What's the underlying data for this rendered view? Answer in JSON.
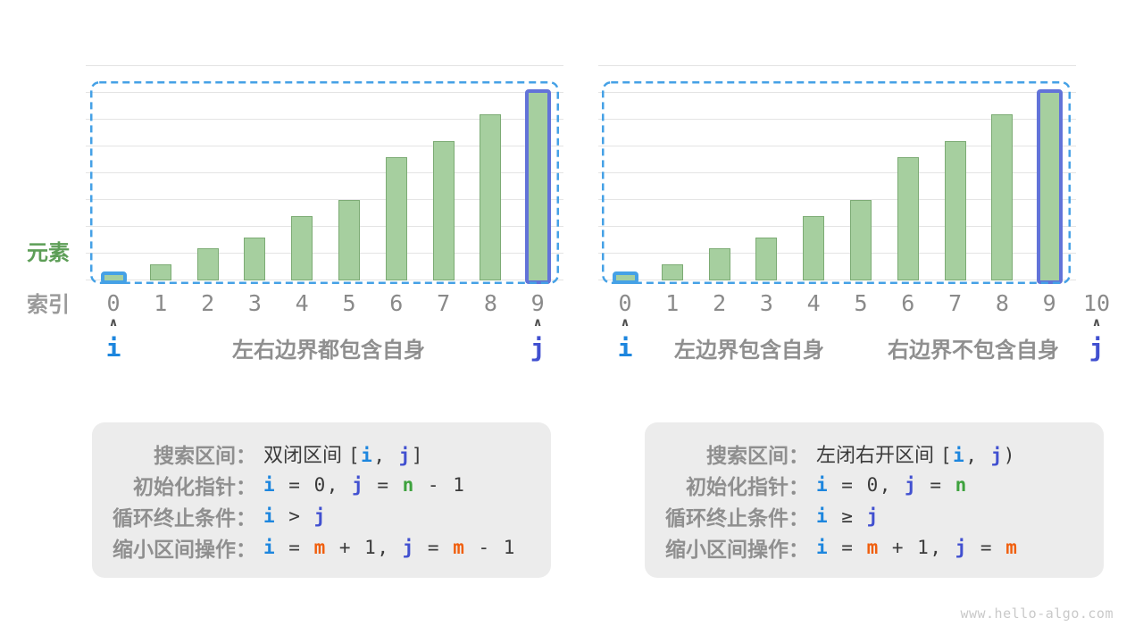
{
  "side_labels": {
    "elements": "元素",
    "index": "索引"
  },
  "watermark": "www.hello-algo.com",
  "colors": {
    "i": "#1d86de",
    "j": "#4150d0",
    "n": "#3ea23e",
    "m": "#f05f0e",
    "dark": "#3b3b3b",
    "bar_fill": "#a6cf9f",
    "bar_border": "#7cab74",
    "highlight_i": "#45a1e6",
    "highlight_j": "#6273d8",
    "selection_dash": "#45a1e6",
    "grid": "#e4e4e4",
    "elements_green": "#5d9e57",
    "axis_gray": "#9a9a9a",
    "index_digits": "#8a8a8a",
    "annotation_gray": "#8f8f8f",
    "caret": "#4f4f4f",
    "box_bg": "#ececec",
    "box_label": "#8f8f8f",
    "watermark": "#c9c9c9"
  },
  "chart_data": [
    {
      "type": "bar",
      "title": "双闭区间 [i, j]",
      "categories": [
        "0",
        "1",
        "2",
        "3",
        "4",
        "5",
        "6",
        "7",
        "8",
        "9"
      ],
      "values": [
        1,
        3,
        6,
        8,
        12,
        15,
        23,
        26,
        31,
        35
      ],
      "ylim": [
        0,
        40
      ],
      "gridline_step": 5,
      "grid": true,
      "legend_position": "none",
      "xlabel": "索引",
      "ylabel": "元素",
      "highlighted_bars": [
        {
          "index": 0,
          "color_key": "highlight_i"
        },
        {
          "index": 9,
          "color_key": "highlight_j"
        }
      ],
      "selection_range": {
        "from_category": "0",
        "to_category": "9"
      },
      "pointers": [
        {
          "label": "i",
          "at_category": "0"
        },
        {
          "label": "j",
          "at_category": "9"
        }
      ],
      "annotations": [
        "左右边界都包含自身"
      ]
    },
    {
      "type": "bar",
      "title": "左闭右开区间 [i, j)",
      "categories": [
        "0",
        "1",
        "2",
        "3",
        "4",
        "5",
        "6",
        "7",
        "8",
        "9",
        "10"
      ],
      "values": [
        1,
        3,
        6,
        8,
        12,
        15,
        23,
        26,
        31,
        35
      ],
      "ylim": [
        0,
        40
      ],
      "gridline_step": 5,
      "grid": true,
      "legend_position": "none",
      "xlabel": "索引",
      "ylabel": "元素",
      "highlighted_bars": [
        {
          "index": 0,
          "color_key": "highlight_i"
        },
        {
          "index": 9,
          "color_key": "highlight_j"
        }
      ],
      "selection_range": {
        "from_category": "0",
        "to_category": "9"
      },
      "pointers": [
        {
          "label": "i",
          "at_category": "0"
        },
        {
          "label": "j",
          "at_category": "10"
        }
      ],
      "annotations": [
        "左边界包含自身",
        "右边界不包含自身"
      ]
    }
  ],
  "info_boxes": [
    {
      "lines": [
        {
          "label": "搜索区间：",
          "code": [
            {
              "t": "双闭区间 ",
              "c": "dark",
              "k": "cjk"
            },
            {
              "t": "[",
              "c": "dark"
            },
            {
              "t": "i",
              "c": "i"
            },
            {
              "t": ", ",
              "c": "dark"
            },
            {
              "t": "j",
              "c": "j"
            },
            {
              "t": "]",
              "c": "dark"
            }
          ]
        },
        {
          "label": "初始化指针：",
          "code": [
            {
              "t": "i",
              "c": "i"
            },
            {
              "t": " = 0, ",
              "c": "dark"
            },
            {
              "t": "j",
              "c": "j"
            },
            {
              "t": " = ",
              "c": "dark"
            },
            {
              "t": "n",
              "c": "n"
            },
            {
              "t": " - 1",
              "c": "dark"
            }
          ]
        },
        {
          "label": "循环终止条件：",
          "code": [
            {
              "t": "i",
              "c": "i"
            },
            {
              "t": " > ",
              "c": "dark"
            },
            {
              "t": "j",
              "c": "j"
            }
          ]
        },
        {
          "label": "缩小区间操作：",
          "code": [
            {
              "t": "i",
              "c": "i"
            },
            {
              "t": " = ",
              "c": "dark"
            },
            {
              "t": "m",
              "c": "m"
            },
            {
              "t": " + 1, ",
              "c": "dark"
            },
            {
              "t": "j",
              "c": "j"
            },
            {
              "t": " = ",
              "c": "dark"
            },
            {
              "t": "m",
              "c": "m"
            },
            {
              "t": " - 1",
              "c": "dark"
            }
          ]
        }
      ]
    },
    {
      "lines": [
        {
          "label": "搜索区间：",
          "code": [
            {
              "t": "左闭右开区间 ",
              "c": "dark",
              "k": "cjk"
            },
            {
              "t": "[",
              "c": "dark"
            },
            {
              "t": "i",
              "c": "i"
            },
            {
              "t": ", ",
              "c": "dark"
            },
            {
              "t": "j",
              "c": "j"
            },
            {
              "t": ")",
              "c": "dark"
            }
          ]
        },
        {
          "label": "初始化指针：",
          "code": [
            {
              "t": "i",
              "c": "i"
            },
            {
              "t": " = 0, ",
              "c": "dark"
            },
            {
              "t": "j",
              "c": "j"
            },
            {
              "t": " = ",
              "c": "dark"
            },
            {
              "t": "n",
              "c": "n"
            }
          ]
        },
        {
          "label": "循环终止条件：",
          "code": [
            {
              "t": "i",
              "c": "i"
            },
            {
              "t": " ≥ ",
              "c": "dark"
            },
            {
              "t": "j",
              "c": "j"
            }
          ]
        },
        {
          "label": "缩小区间操作：",
          "code": [
            {
              "t": "i",
              "c": "i"
            },
            {
              "t": " = ",
              "c": "dark"
            },
            {
              "t": "m",
              "c": "m"
            },
            {
              "t": " + 1, ",
              "c": "dark"
            },
            {
              "t": "j",
              "c": "j"
            },
            {
              "t": " = ",
              "c": "dark"
            },
            {
              "t": "m",
              "c": "m"
            }
          ]
        }
      ]
    }
  ]
}
